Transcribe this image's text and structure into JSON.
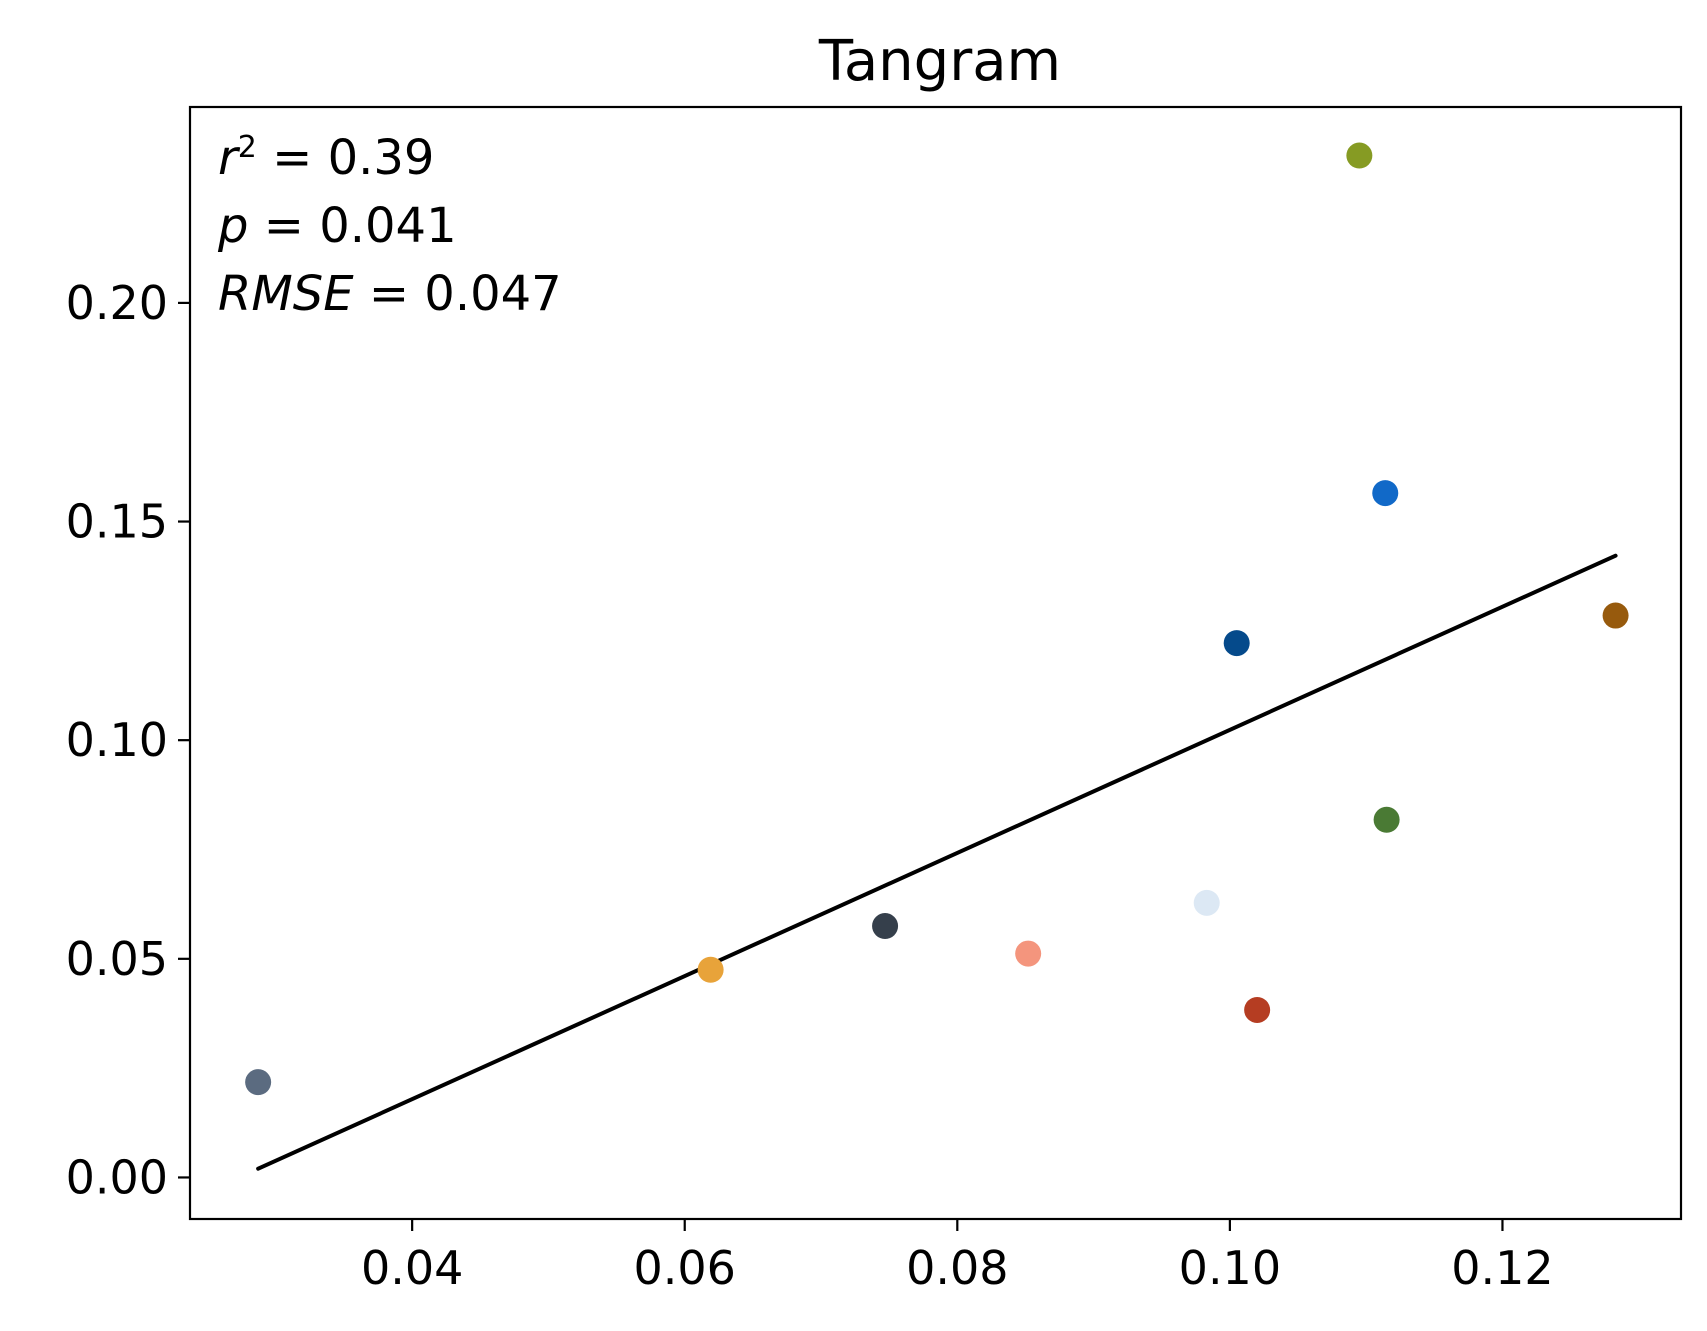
{
  "chart_data": {
    "type": "scatter",
    "title": "Tangram",
    "xlabel": "",
    "ylabel": "",
    "xlim": [
      0.0237,
      0.1331
    ],
    "ylim": [
      -0.0095,
      0.2448
    ],
    "x_ticks": [
      0.04,
      0.06,
      0.08,
      0.1,
      0.12
    ],
    "x_tick_labels": [
      "0.04",
      "0.06",
      "0.08",
      "0.10",
      "0.12"
    ],
    "y_ticks": [
      0.0,
      0.05,
      0.1,
      0.15,
      0.2
    ],
    "y_tick_labels": [
      "0.00",
      "0.05",
      "0.10",
      "0.15",
      "0.20"
    ],
    "grid": false,
    "legend": "none",
    "points": [
      {
        "x": 0.0287,
        "y": 0.0218,
        "color": "#5b6b80"
      },
      {
        "x": 0.0619,
        "y": 0.0475,
        "color": "#e8a33a"
      },
      {
        "x": 0.0747,
        "y": 0.0575,
        "color": "#353f4b"
      },
      {
        "x": 0.0852,
        "y": 0.0512,
        "color": "#f4957d"
      },
      {
        "x": 0.0983,
        "y": 0.0628,
        "color": "#dce8f4"
      },
      {
        "x": 0.1005,
        "y": 0.1222,
        "color": "#054a8b"
      },
      {
        "x": 0.102,
        "y": 0.0383,
        "color": "#b53d22"
      },
      {
        "x": 0.1095,
        "y": 0.2337,
        "color": "#869b23"
      },
      {
        "x": 0.1114,
        "y": 0.1565,
        "color": "#1169c8"
      },
      {
        "x": 0.1115,
        "y": 0.0818,
        "color": "#4a7a34"
      },
      {
        "x": 0.1283,
        "y": 0.1285,
        "color": "#975a0d"
      }
    ],
    "regression_line": {
      "x": [
        0.0287,
        0.1283
      ],
      "y": [
        0.002,
        0.1422
      ],
      "color": "#000000"
    },
    "annotations": {
      "r2": {
        "lhs": "r",
        "sup": "2",
        "rhs": " = 0.39"
      },
      "p": {
        "lhs": "p",
        "rhs": " = 0.041"
      },
      "rmse": {
        "lhs": "RMSE",
        "rhs": " = 0.047"
      }
    }
  }
}
